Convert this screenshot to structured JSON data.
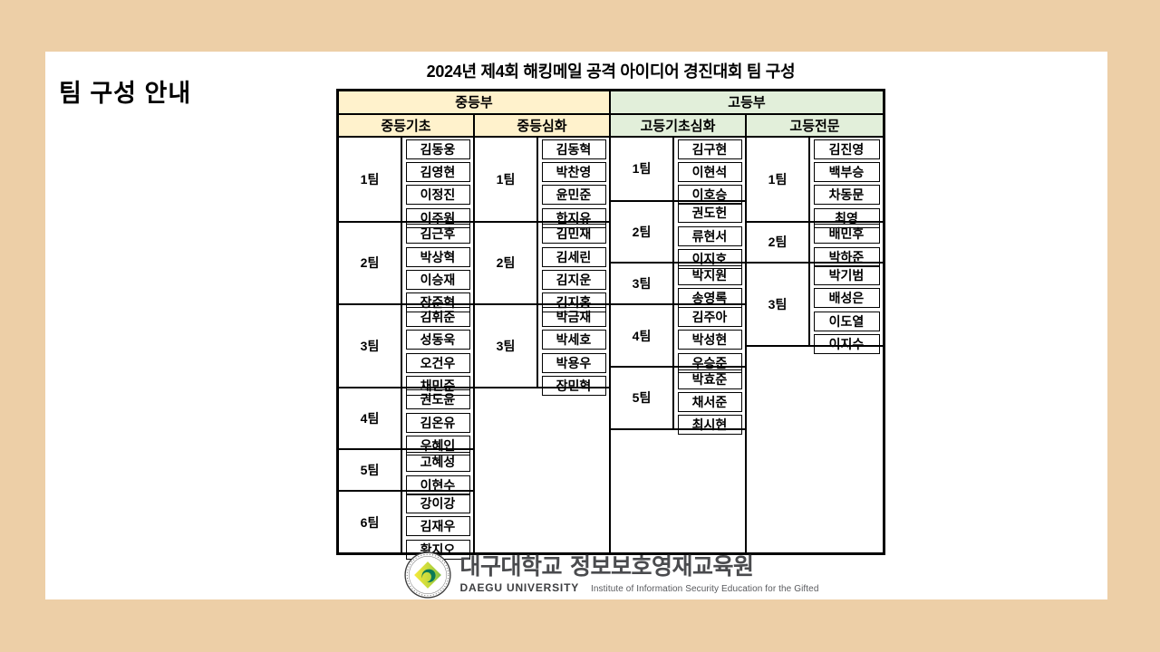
{
  "slide": {
    "side_title": "팀 구성 안내",
    "background_color": "#FFFFFF",
    "page_background_color": "#EDCFA7"
  },
  "table": {
    "title": "2024년 제4회 해킹메일 공격 아이디어 경진대회 팀 구성",
    "rows": 20,
    "header_colors": {
      "middle": "#FFF2CC",
      "high": "#E2EFDA"
    },
    "top_headers": [
      {
        "label": "중등부",
        "color": "#FFF2CC"
      },
      {
        "label": "고등부",
        "color": "#E2EFDA"
      }
    ],
    "divisions": [
      {
        "label": "중등기초",
        "color": "#FFF2CC",
        "teams": [
          {
            "name": "1팀",
            "members": [
              "김동웅",
              "김영현",
              "이정진",
              "이주원"
            ]
          },
          {
            "name": "2팀",
            "members": [
              "김근후",
              "박상혁",
              "이승재",
              "장준혁"
            ]
          },
          {
            "name": "3팀",
            "members": [
              "김휘준",
              "성동욱",
              "오건우",
              "채민준"
            ]
          },
          {
            "name": "4팀",
            "members": [
              "권도윤",
              "김온유",
              "우혜인"
            ]
          },
          {
            "name": "5팀",
            "members": [
              "고혜성",
              "이현수"
            ]
          },
          {
            "name": "6팀",
            "members": [
              "강이강",
              "김재우",
              "황지오"
            ]
          }
        ]
      },
      {
        "label": "중등심화",
        "color": "#FFF2CC",
        "teams": [
          {
            "name": "1팀",
            "members": [
              "김동혁",
              "박찬영",
              "윤민준",
              "한지유"
            ]
          },
          {
            "name": "2팀",
            "members": [
              "김민재",
              "김세린",
              "김지운",
              "김지홍"
            ]
          },
          {
            "name": "3팀",
            "members": [
              "박금재",
              "박세호",
              "박용우",
              "장민혁"
            ]
          }
        ]
      },
      {
        "label": "고등기초심화",
        "color": "#E2EFDA",
        "teams": [
          {
            "name": "1팀",
            "members": [
              "김구현",
              "이현석",
              "이호승"
            ]
          },
          {
            "name": "2팀",
            "members": [
              "권도헌",
              "류현서",
              "이지호"
            ]
          },
          {
            "name": "3팀",
            "members": [
              "박지원",
              "송영록"
            ]
          },
          {
            "name": "4팀",
            "members": [
              "김주아",
              "박성현",
              "우승준"
            ]
          },
          {
            "name": "5팀",
            "members": [
              "박효준",
              "채서준",
              "최시현"
            ]
          }
        ]
      },
      {
        "label": "고등전문",
        "color": "#E2EFDA",
        "teams": [
          {
            "name": "1팀",
            "members": [
              "김진영",
              "백부승",
              "차동문",
              "최영"
            ]
          },
          {
            "name": "2팀",
            "members": [
              "배민후",
              "박하준"
            ]
          },
          {
            "name": "3팀",
            "members": [
              "박기범",
              "배성은",
              "이도열",
              "이지수"
            ]
          }
        ]
      }
    ]
  },
  "footer": {
    "emblem": "daegu-university-emblem",
    "university_kr": "대구대학교",
    "institute_kr": "정보보호영재교육원",
    "university_en": "DAEGU UNIVERSITY",
    "institute_en": "Institute of Information Security Education for the Gifted"
  }
}
